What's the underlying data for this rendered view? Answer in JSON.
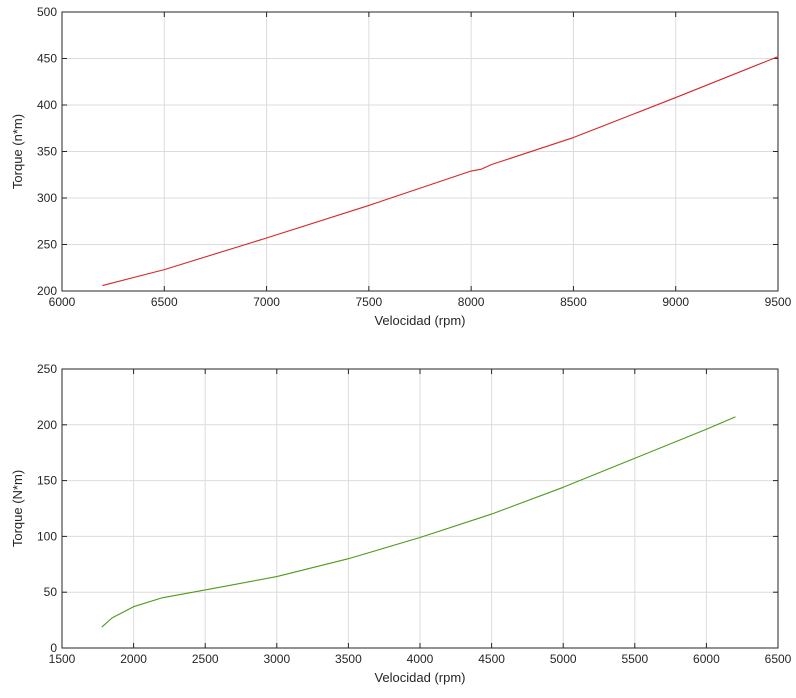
{
  "chart_data": [
    {
      "type": "line",
      "title": "",
      "xlabel": "Velocidad (rpm)",
      "ylabel": "Torque (n*m)",
      "xlim": [
        6000,
        9500
      ],
      "ylim": [
        200,
        500
      ],
      "xticks": [
        6000,
        6500,
        7000,
        7500,
        8000,
        8500,
        9000,
        9500
      ],
      "yticks": [
        200,
        250,
        300,
        350,
        400,
        450,
        500
      ],
      "grid": true,
      "legend": "none",
      "series": [
        {
          "color": "#d62728",
          "x": [
            6200,
            6500,
            7000,
            7500,
            8000,
            8050,
            8100,
            8500,
            9000,
            9500
          ],
          "y": [
            206,
            223,
            257,
            292,
            329,
            331,
            336,
            365,
            408,
            452
          ]
        }
      ]
    },
    {
      "type": "line",
      "title": "",
      "xlabel": "Velocidad (rpm)",
      "ylabel": "Torque (N*m)",
      "xlim": [
        1500,
        6500
      ],
      "ylim": [
        0,
        250
      ],
      "xticks": [
        1500,
        2000,
        2500,
        3000,
        3500,
        4000,
        4500,
        5000,
        5500,
        6000,
        6500
      ],
      "yticks": [
        0,
        50,
        100,
        150,
        200,
        250
      ],
      "grid": true,
      "legend": "none",
      "series": [
        {
          "color": "#4f9a1c",
          "x": [
            1780,
            1850,
            2000,
            2200,
            2500,
            3000,
            3500,
            4000,
            4500,
            5000,
            5500,
            6000,
            6200
          ],
          "y": [
            19,
            27,
            37,
            45,
            52,
            64,
            80,
            99,
            120,
            144,
            170,
            196,
            207
          ]
        }
      ]
    }
  ]
}
